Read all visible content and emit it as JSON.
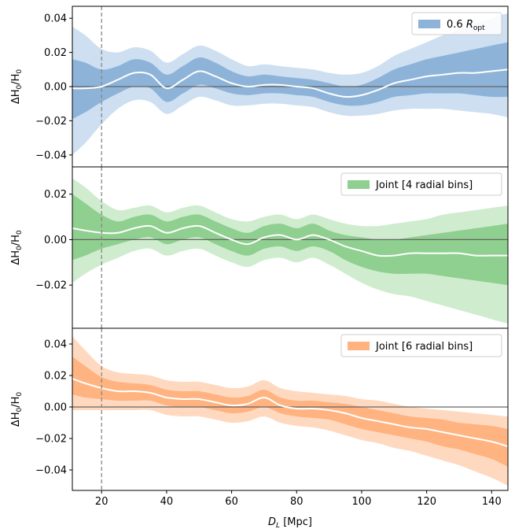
{
  "chart_data": {
    "type": "area",
    "xlabel": "D_L [Mpc]",
    "xlim": [
      11,
      145
    ],
    "xticks": [
      20,
      40,
      60,
      80,
      100,
      120,
      140
    ],
    "vline_x": 20,
    "shared_x": true,
    "panels": [
      {
        "legend": "0.6 R_opt",
        "legend_position": "upper right",
        "ylabel": "ΔH0/H0",
        "ylim": [
          -0.047,
          0.047
        ],
        "yticks": [
          -0.04,
          -0.02,
          0.0,
          0.02,
          0.04
        ],
        "color_inner": "#8db3d9",
        "color_outer": "#cddff0",
        "x": [
          11,
          15,
          20,
          25,
          30,
          35,
          40,
          45,
          50,
          55,
          60,
          65,
          70,
          75,
          80,
          85,
          90,
          95,
          100,
          105,
          110,
          115,
          120,
          125,
          130,
          135,
          140,
          145
        ],
        "median": [
          -0.001,
          -0.001,
          0.0,
          0.004,
          0.008,
          0.007,
          -0.001,
          0.004,
          0.009,
          0.006,
          0.002,
          0.0,
          0.001,
          0.001,
          0.0,
          -0.001,
          -0.004,
          -0.006,
          -0.005,
          -0.002,
          0.002,
          0.004,
          0.006,
          0.007,
          0.008,
          0.008,
          0.009,
          0.01
        ],
        "inner_lo": [
          -0.019,
          -0.015,
          -0.009,
          -0.004,
          0.0,
          -0.001,
          -0.009,
          -0.004,
          0.001,
          -0.001,
          -0.004,
          -0.005,
          -0.004,
          -0.004,
          -0.005,
          -0.006,
          -0.009,
          -0.011,
          -0.011,
          -0.009,
          -0.006,
          -0.005,
          -0.004,
          -0.004,
          -0.004,
          -0.005,
          -0.006,
          -0.006
        ],
        "inner_hi": [
          0.016,
          0.014,
          0.01,
          0.012,
          0.016,
          0.014,
          0.007,
          0.012,
          0.017,
          0.014,
          0.009,
          0.006,
          0.007,
          0.006,
          0.005,
          0.004,
          0.002,
          0.0,
          0.001,
          0.005,
          0.01,
          0.013,
          0.016,
          0.018,
          0.02,
          0.022,
          0.024,
          0.026
        ],
        "outer_lo": [
          -0.04,
          -0.033,
          -0.022,
          -0.013,
          -0.008,
          -0.009,
          -0.016,
          -0.011,
          -0.006,
          -0.008,
          -0.011,
          -0.011,
          -0.01,
          -0.01,
          -0.011,
          -0.012,
          -0.015,
          -0.017,
          -0.017,
          -0.016,
          -0.014,
          -0.013,
          -0.013,
          -0.013,
          -0.014,
          -0.015,
          -0.016,
          -0.018
        ],
        "outer_hi": [
          0.035,
          0.03,
          0.022,
          0.02,
          0.023,
          0.021,
          0.014,
          0.019,
          0.024,
          0.021,
          0.016,
          0.012,
          0.013,
          0.012,
          0.011,
          0.01,
          0.008,
          0.007,
          0.008,
          0.012,
          0.018,
          0.022,
          0.026,
          0.03,
          0.033,
          0.037,
          0.04,
          0.043
        ]
      },
      {
        "legend": "Joint [4 radial bins]",
        "legend_position": "upper right",
        "ylabel": "ΔH0/H0",
        "ylim": [
          -0.039,
          0.032
        ],
        "yticks": [
          -0.02,
          0.0,
          0.02
        ],
        "color_inner": "#8fcf8f",
        "color_outer": "#cfeccf",
        "x": [
          11,
          15,
          20,
          25,
          30,
          35,
          40,
          45,
          50,
          55,
          60,
          65,
          70,
          75,
          80,
          85,
          90,
          95,
          100,
          105,
          110,
          115,
          120,
          125,
          130,
          135,
          140,
          145
        ],
        "median": [
          0.005,
          0.004,
          0.003,
          0.003,
          0.005,
          0.006,
          0.003,
          0.005,
          0.006,
          0.003,
          0.0,
          -0.002,
          0.001,
          0.002,
          0.0,
          0.002,
          0.0,
          -0.003,
          -0.005,
          -0.007,
          -0.007,
          -0.006,
          -0.006,
          -0.006,
          -0.006,
          -0.007,
          -0.007,
          -0.007
        ],
        "inner_lo": [
          -0.009,
          -0.007,
          -0.004,
          -0.002,
          0.0,
          0.001,
          -0.002,
          0.0,
          0.001,
          -0.002,
          -0.005,
          -0.007,
          -0.004,
          -0.003,
          -0.005,
          -0.003,
          -0.005,
          -0.009,
          -0.012,
          -0.014,
          -0.015,
          -0.015,
          -0.015,
          -0.016,
          -0.017,
          -0.018,
          -0.019,
          -0.02
        ],
        "inner_hi": [
          0.02,
          0.016,
          0.011,
          0.008,
          0.01,
          0.011,
          0.008,
          0.01,
          0.011,
          0.008,
          0.005,
          0.003,
          0.006,
          0.007,
          0.005,
          0.007,
          0.004,
          0.002,
          0.001,
          0.0,
          0.0,
          0.001,
          0.002,
          0.003,
          0.004,
          0.005,
          0.006,
          0.007
        ],
        "outer_lo": [
          -0.019,
          -0.015,
          -0.011,
          -0.008,
          -0.005,
          -0.004,
          -0.007,
          -0.005,
          -0.004,
          -0.007,
          -0.01,
          -0.012,
          -0.009,
          -0.008,
          -0.01,
          -0.008,
          -0.011,
          -0.015,
          -0.019,
          -0.022,
          -0.024,
          -0.025,
          -0.027,
          -0.029,
          -0.031,
          -0.033,
          -0.035,
          -0.037
        ],
        "outer_hi": [
          0.027,
          0.023,
          0.017,
          0.013,
          0.014,
          0.015,
          0.012,
          0.014,
          0.015,
          0.012,
          0.009,
          0.008,
          0.01,
          0.011,
          0.009,
          0.011,
          0.009,
          0.007,
          0.006,
          0.006,
          0.007,
          0.008,
          0.009,
          0.011,
          0.012,
          0.013,
          0.014,
          0.015
        ]
      },
      {
        "legend": "Joint [6 radial bins]",
        "legend_position": "upper right",
        "ylabel": "ΔH0/H0",
        "ylim": [
          -0.053,
          0.05
        ],
        "yticks": [
          -0.04,
          -0.02,
          0.0,
          0.02,
          0.04
        ],
        "color_inner": "#ffb380",
        "color_outer": "#ffd9bf",
        "x": [
          11,
          15,
          20,
          25,
          30,
          35,
          40,
          45,
          50,
          55,
          60,
          65,
          70,
          75,
          80,
          85,
          90,
          95,
          100,
          105,
          110,
          115,
          120,
          125,
          130,
          135,
          140,
          145
        ],
        "median": [
          0.018,
          0.015,
          0.012,
          0.01,
          0.01,
          0.009,
          0.006,
          0.005,
          0.005,
          0.003,
          0.001,
          0.002,
          0.006,
          0.001,
          -0.001,
          -0.001,
          -0.002,
          -0.004,
          -0.007,
          -0.009,
          -0.011,
          -0.013,
          -0.014,
          -0.016,
          -0.018,
          -0.02,
          -0.022,
          -0.025
        ],
        "inner_lo": [
          0.008,
          0.006,
          0.005,
          0.004,
          0.004,
          0.004,
          0.001,
          0.0,
          0.0,
          -0.002,
          -0.004,
          -0.003,
          0.0,
          -0.004,
          -0.006,
          -0.007,
          -0.008,
          -0.011,
          -0.014,
          -0.016,
          -0.018,
          -0.02,
          -0.022,
          -0.025,
          -0.027,
          -0.03,
          -0.033,
          -0.038
        ],
        "inner_hi": [
          0.032,
          0.026,
          0.019,
          0.016,
          0.015,
          0.014,
          0.011,
          0.01,
          0.01,
          0.008,
          0.006,
          0.007,
          0.011,
          0.006,
          0.004,
          0.004,
          0.003,
          0.002,
          0.0,
          -0.002,
          -0.004,
          -0.006,
          -0.007,
          -0.008,
          -0.01,
          -0.011,
          -0.012,
          -0.014
        ],
        "outer_lo": [
          -0.002,
          -0.002,
          -0.002,
          -0.002,
          -0.002,
          -0.002,
          -0.005,
          -0.006,
          -0.006,
          -0.008,
          -0.01,
          -0.009,
          -0.006,
          -0.01,
          -0.012,
          -0.013,
          -0.015,
          -0.018,
          -0.021,
          -0.023,
          -0.026,
          -0.028,
          -0.031,
          -0.034,
          -0.037,
          -0.041,
          -0.045,
          -0.05
        ],
        "outer_hi": [
          0.045,
          0.036,
          0.026,
          0.022,
          0.021,
          0.02,
          0.017,
          0.016,
          0.016,
          0.014,
          0.012,
          0.013,
          0.017,
          0.012,
          0.01,
          0.009,
          0.008,
          0.007,
          0.005,
          0.004,
          0.002,
          0.0,
          -0.001,
          -0.002,
          -0.003,
          -0.004,
          -0.005,
          -0.006
        ]
      }
    ]
  }
}
